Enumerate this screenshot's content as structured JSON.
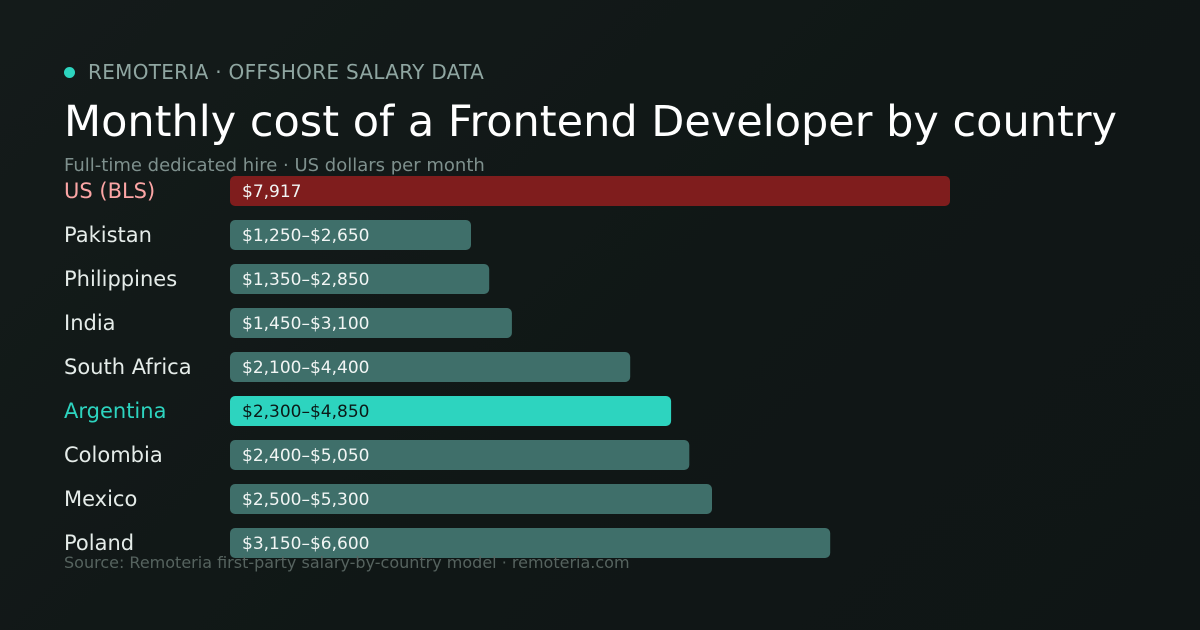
{
  "header": {
    "brand": "REMOTERIA · OFFSHORE SALARY DATA",
    "title": "Monthly cost of a Frontend Developer by country",
    "subtitle": "Full-time dedicated hire · US dollars per month"
  },
  "footer": {
    "source": "Source: Remoteria first-party salary-by-country model · remoteria.com"
  },
  "colors": {
    "accent": "#2dd4bf",
    "benchmark": "#7f1d1d",
    "benchmark_label": "#fca5a5",
    "bar_default": "#3f6f6a",
    "label_default": "#e5ece9",
    "value_default": "#f1f5f4",
    "value_on_accent": "#0b1a18"
  },
  "chart_data": {
    "type": "bar",
    "orientation": "horizontal",
    "unit": "USD per month",
    "categories": [
      "US (BLS)",
      "Pakistan",
      "Philippines",
      "India",
      "South Africa",
      "Argentina",
      "Colombia",
      "Mexico",
      "Poland"
    ],
    "values": [
      7917,
      2650,
      2850,
      3100,
      4400,
      4850,
      5050,
      5300,
      6600
    ],
    "ranges": [
      null,
      [
        1250,
        2650
      ],
      [
        1350,
        2850
      ],
      [
        1450,
        3100
      ],
      [
        2100,
        4400
      ],
      [
        2300,
        4850
      ],
      [
        2400,
        5050
      ],
      [
        2500,
        5300
      ],
      [
        3150,
        6600
      ]
    ],
    "value_labels": [
      "$7,917",
      "$1,250–$2,650",
      "$1,350–$2,850",
      "$1,450–$3,100",
      "$2,100–$4,400",
      "$2,300–$4,850",
      "$2,400–$5,050",
      "$2,500–$5,300",
      "$3,150–$6,600"
    ],
    "highlight": {
      "benchmark": "US (BLS)",
      "featured": "Argentina"
    },
    "xlim": [
      0,
      7917
    ],
    "grid": false,
    "legend": "none"
  }
}
